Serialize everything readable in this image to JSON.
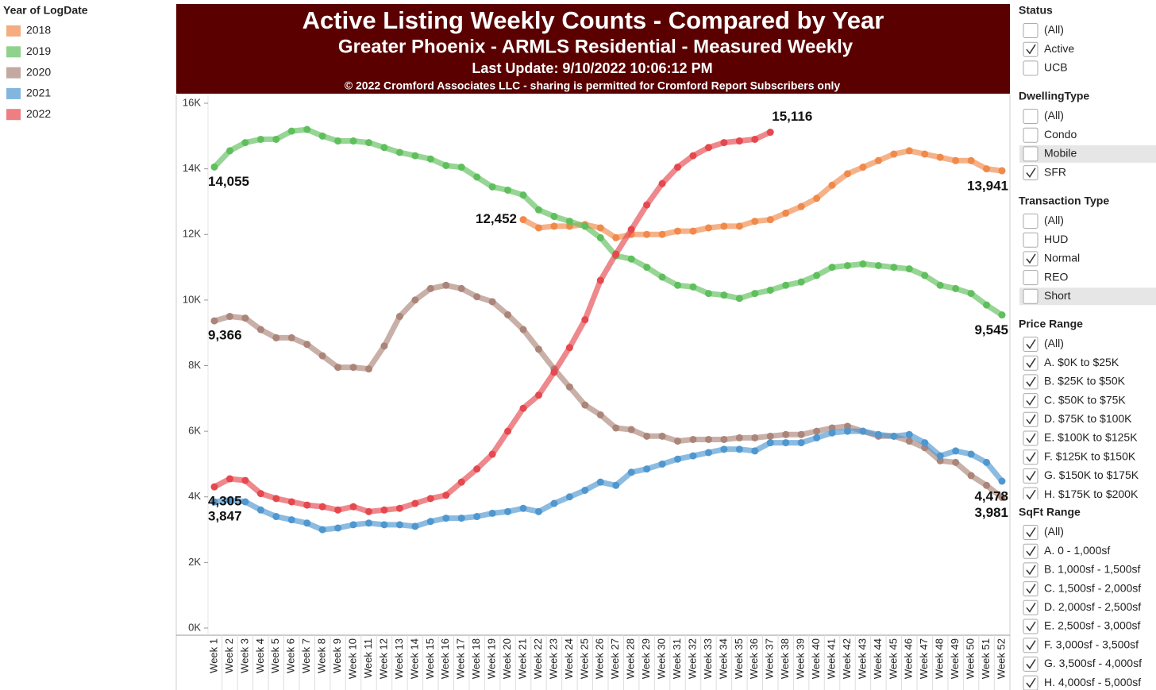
{
  "legend": {
    "title": "Year of LogDate"
  },
  "chart_data": {
    "type": "line",
    "title": "Active Listing Weekly Counts - Compared by Year",
    "subtitle": "Greater Phoenix - ARMLS Residential - Measured Weekly",
    "update": "Last Update: 9/10/2022 10:06:12 PM",
    "copyright": "© 2022 Cromford Associates LLC - sharing is permitted for Cromford Report Subscribers only",
    "categories": [
      "Week 1",
      "Week 2",
      "Week 3",
      "Week 4",
      "Week 5",
      "Week 6",
      "Week 7",
      "Week 8",
      "Week 9",
      "Week 10",
      "Week 11",
      "Week 12",
      "Week 13",
      "Week 14",
      "Week 15",
      "Week 16",
      "Week 17",
      "Week 18",
      "Week 19",
      "Week 20",
      "Week 21",
      "Week 22",
      "Week 23",
      "Week 24",
      "Week 25",
      "Week 26",
      "Week 27",
      "Week 28",
      "Week 29",
      "Week 30",
      "Week 31",
      "Week 32",
      "Week 33",
      "Week 34",
      "Week 35",
      "Week 36",
      "Week 37",
      "Week 38",
      "Week 39",
      "Week 40",
      "Week 41",
      "Week 42",
      "Week 43",
      "Week 44",
      "Week 45",
      "Week 46",
      "Week 47",
      "Week 48",
      "Week 49",
      "Week 50",
      "Week 51",
      "Week 52"
    ],
    "ylim": [
      0,
      16000
    ],
    "yticks": [
      {
        "value": 0,
        "label": "0K"
      },
      {
        "value": 2000,
        "label": "2K"
      },
      {
        "value": 4000,
        "label": "4K"
      },
      {
        "value": 6000,
        "label": "6K"
      },
      {
        "value": 8000,
        "label": "8K"
      },
      {
        "value": 10000,
        "label": "10K"
      },
      {
        "value": 12000,
        "label": "12K"
      },
      {
        "value": 14000,
        "label": "14K"
      },
      {
        "value": 16000,
        "label": "16K"
      }
    ],
    "series": [
      {
        "name": "2018",
        "color": "#f0894a",
        "values": [
          null,
          null,
          null,
          null,
          null,
          null,
          null,
          null,
          null,
          null,
          null,
          null,
          null,
          null,
          null,
          null,
          null,
          null,
          null,
          null,
          12452,
          12200,
          12250,
          12250,
          12300,
          12200,
          11900,
          12000,
          12000,
          12000,
          12100,
          12100,
          12200,
          12250,
          12250,
          12400,
          12450,
          12650,
          12850,
          13100,
          13500,
          13850,
          14050,
          14250,
          14450,
          14550,
          14450,
          14350,
          14250,
          14250,
          14000,
          13941
        ],
        "value_labels": [
          null,
          null,
          null,
          null,
          null,
          null,
          null,
          null,
          null,
          null,
          null,
          null,
          null,
          null,
          null,
          null,
          null,
          null,
          null,
          null,
          "12,452",
          null,
          null,
          null,
          null,
          null,
          null,
          null,
          null,
          null,
          null,
          null,
          null,
          null,
          null,
          null,
          null,
          null,
          null,
          null,
          null,
          null,
          null,
          null,
          null,
          null,
          null,
          null,
          null,
          null,
          null,
          "13,941"
        ]
      },
      {
        "name": "2019",
        "color": "#5fbf5c",
        "values": [
          14055,
          14550,
          14800,
          14900,
          14900,
          15150,
          15200,
          15000,
          14850,
          14850,
          14800,
          14650,
          14500,
          14400,
          14300,
          14100,
          14050,
          13750,
          13450,
          13350,
          13200,
          12750,
          12550,
          12400,
          12250,
          11900,
          11350,
          11250,
          11000,
          10700,
          10450,
          10400,
          10200,
          10150,
          10050,
          10200,
          10300,
          10450,
          10550,
          10750,
          11000,
          11050,
          11100,
          11050,
          11000,
          10950,
          10750,
          10450,
          10350,
          10200,
          9850,
          9545
        ],
        "value_labels": [
          "14,055",
          null,
          null,
          null,
          null,
          null,
          null,
          null,
          null,
          null,
          null,
          null,
          null,
          null,
          null,
          null,
          null,
          null,
          null,
          null,
          null,
          null,
          null,
          null,
          null,
          null,
          null,
          null,
          null,
          null,
          null,
          null,
          null,
          null,
          null,
          null,
          null,
          null,
          null,
          null,
          null,
          null,
          null,
          null,
          null,
          null,
          null,
          null,
          null,
          null,
          null,
          "9,545"
        ]
      },
      {
        "name": "2020",
        "color": "#ab8579",
        "values": [
          9366,
          9500,
          9450,
          9100,
          8850,
          8850,
          8650,
          8300,
          7950,
          7950,
          7900,
          8600,
          9500,
          10000,
          10350,
          10450,
          10350,
          10100,
          9950,
          9550,
          9100,
          8500,
          7900,
          7350,
          6800,
          6500,
          6100,
          6050,
          5850,
          5850,
          5700,
          5750,
          5750,
          5750,
          5800,
          5800,
          5850,
          5900,
          5900,
          6000,
          6100,
          6150,
          6000,
          5850,
          5850,
          5700,
          5500,
          5100,
          5050,
          4650,
          4350,
          3981
        ],
        "value_labels": [
          "9,366",
          null,
          null,
          null,
          null,
          null,
          null,
          null,
          null,
          null,
          null,
          null,
          null,
          null,
          null,
          null,
          null,
          null,
          null,
          null,
          null,
          null,
          null,
          null,
          null,
          null,
          null,
          null,
          null,
          null,
          null,
          null,
          null,
          null,
          null,
          null,
          null,
          null,
          null,
          null,
          null,
          null,
          null,
          null,
          null,
          null,
          null,
          null,
          null,
          null,
          null,
          "3,981"
        ]
      },
      {
        "name": "2021",
        "color": "#4f97d0",
        "values": [
          3847,
          3900,
          3850,
          3600,
          3400,
          3300,
          3200,
          3000,
          3050,
          3150,
          3200,
          3150,
          3150,
          3100,
          3250,
          3350,
          3350,
          3400,
          3500,
          3550,
          3650,
          3550,
          3800,
          4000,
          4200,
          4450,
          4350,
          4750,
          4850,
          5000,
          5150,
          5250,
          5350,
          5450,
          5450,
          5400,
          5650,
          5650,
          5650,
          5800,
          5950,
          6000,
          6000,
          5900,
          5850,
          5900,
          5650,
          5250,
          5400,
          5300,
          5050,
          4478
        ],
        "value_labels": [
          "3,847",
          null,
          null,
          null,
          null,
          null,
          null,
          null,
          null,
          null,
          null,
          null,
          null,
          null,
          null,
          null,
          null,
          null,
          null,
          null,
          null,
          null,
          null,
          null,
          null,
          null,
          null,
          null,
          null,
          null,
          null,
          null,
          null,
          null,
          null,
          null,
          null,
          null,
          null,
          null,
          null,
          null,
          null,
          null,
          null,
          null,
          null,
          null,
          null,
          null,
          null,
          "4,478"
        ]
      },
      {
        "name": "2022",
        "color": "#e5484e",
        "values": [
          4305,
          4550,
          4500,
          4100,
          3950,
          3850,
          3750,
          3700,
          3600,
          3700,
          3550,
          3600,
          3650,
          3800,
          3950,
          4050,
          4450,
          4850,
          5300,
          6000,
          6700,
          7100,
          7800,
          8550,
          9400,
          10600,
          11400,
          12150,
          12900,
          13550,
          14050,
          14400,
          14650,
          14800,
          14850,
          14900,
          15116,
          null,
          null,
          null,
          null,
          null,
          null,
          null,
          null,
          null,
          null,
          null,
          null,
          null,
          null,
          null
        ],
        "value_labels": [
          "4,305",
          null,
          null,
          null,
          null,
          null,
          null,
          null,
          null,
          null,
          null,
          null,
          null,
          null,
          null,
          null,
          null,
          null,
          null,
          null,
          null,
          null,
          null,
          null,
          null,
          null,
          null,
          null,
          null,
          null,
          null,
          null,
          null,
          null,
          null,
          null,
          "15,116",
          null,
          null,
          null,
          null,
          null,
          null,
          null,
          null,
          null,
          null,
          null,
          null,
          null,
          null,
          null
        ]
      }
    ]
  },
  "filters": [
    {
      "title": "Status",
      "items": [
        {
          "label": "(All)",
          "checked": false
        },
        {
          "label": "Active",
          "checked": true
        },
        {
          "label": "UCB",
          "checked": false
        }
      ]
    },
    {
      "title": "DwellingType",
      "items": [
        {
          "label": "(All)",
          "checked": false
        },
        {
          "label": "Condo",
          "checked": false
        },
        {
          "label": "Mobile",
          "checked": false,
          "highlighted": true
        },
        {
          "label": "SFR",
          "checked": true
        }
      ]
    },
    {
      "title": "Transaction Type",
      "items": [
        {
          "label": "(All)",
          "checked": false
        },
        {
          "label": "HUD",
          "checked": false
        },
        {
          "label": "Normal",
          "checked": true
        },
        {
          "label": "REO",
          "checked": false
        },
        {
          "label": "Short",
          "checked": false,
          "highlighted": true
        }
      ]
    },
    {
      "title": "Price Range",
      "items": [
        {
          "label": "(All)",
          "checked": true
        },
        {
          "label": "A. $0K to $25K",
          "checked": true
        },
        {
          "label": "B. $25K to $50K",
          "checked": true
        },
        {
          "label": "C. $50K to $75K",
          "checked": true
        },
        {
          "label": "D. $75K to $100K",
          "checked": true
        },
        {
          "label": "E. $100K to $125K",
          "checked": true
        },
        {
          "label": "F. $125K to $150K",
          "checked": true
        },
        {
          "label": "G. $150K to $175K",
          "checked": true
        },
        {
          "label": "H. $175K to $200K",
          "checked": true
        }
      ]
    },
    {
      "title": "SqFt Range",
      "items": [
        {
          "label": "(All)",
          "checked": true
        },
        {
          "label": "A. 0 - 1,000sf",
          "checked": true
        },
        {
          "label": "B. 1,000sf - 1,500sf",
          "checked": true
        },
        {
          "label": "C. 1,500sf - 2,000sf",
          "checked": true
        },
        {
          "label": "D. 2,000sf - 2,500sf",
          "checked": true
        },
        {
          "label": "E. 2,500sf - 3,000sf",
          "checked": true
        },
        {
          "label": "F. 3,000sf - 3,500sf",
          "checked": true
        },
        {
          "label": "G. 3,500sf - 4,000sf",
          "checked": true
        },
        {
          "label": "H. 4,000sf - 5,000sf",
          "checked": true
        }
      ]
    }
  ]
}
